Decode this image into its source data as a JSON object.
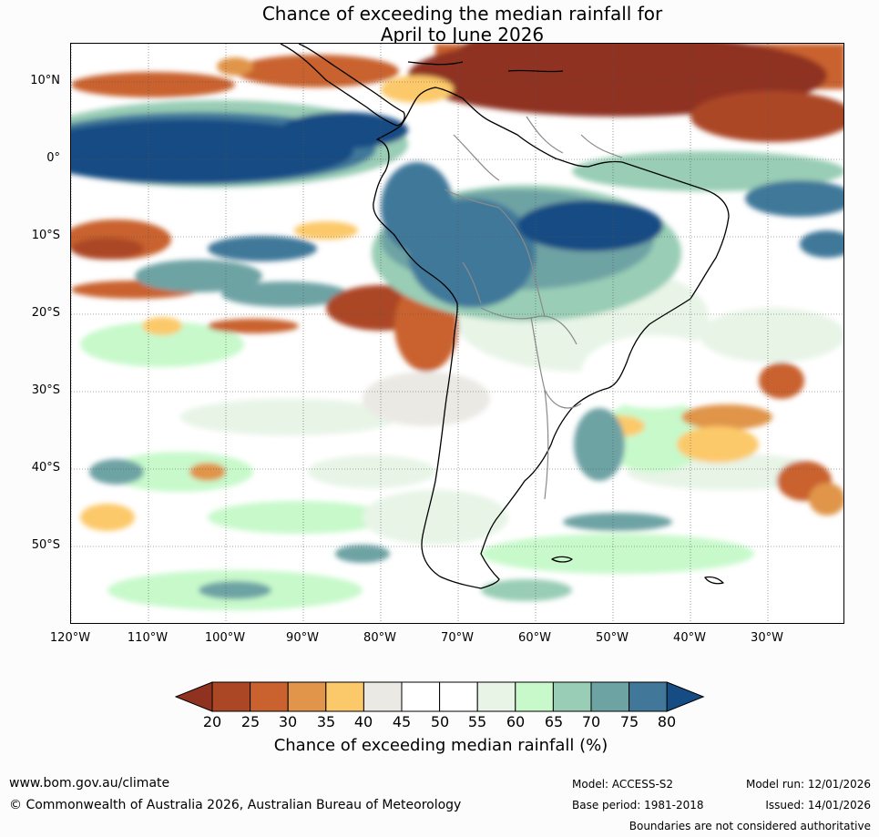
{
  "title": {
    "line1": "Chance of exceeding the median rainfall for",
    "line2": "April to June 2026"
  },
  "map": {
    "lat_labels": [
      "10°N",
      "0°",
      "10°S",
      "20°S",
      "30°S",
      "40°S",
      "50°S"
    ],
    "lon_labels": [
      "120°W",
      "110°W",
      "100°W",
      "90°W",
      "80°W",
      "70°W",
      "60°W",
      "50°W",
      "40°W",
      "30°W"
    ]
  },
  "colorbar": {
    "ticks": [
      "20",
      "25",
      "30",
      "35",
      "40",
      "45",
      "50",
      "55",
      "60",
      "65",
      "70",
      "75",
      "80"
    ],
    "colors": [
      "#8f3320",
      "#ac4726",
      "#c9622e",
      "#e0954a",
      "#fcc96a",
      "#ebe9e4",
      "#ffffff",
      "#ffffff",
      "#e7f4e6",
      "#c7f9cb",
      "#99cdb5",
      "#6ea3a4",
      "#41789a",
      "#154c84"
    ],
    "label": "Chance of exceeding median rainfall (%)"
  },
  "footer": {
    "url": "www.bom.gov.au/climate",
    "copyright": "© Commonwealth of Australia 2026, Australian Bureau of Meteorology",
    "model": "Model: ACCESS-S2",
    "model_run": "Model run: 12/01/2026",
    "base_period": "Base period: 1981-2018",
    "issued": "Issued: 14/01/2026",
    "disclaimer": "Boundaries are not considered authoritative"
  }
}
